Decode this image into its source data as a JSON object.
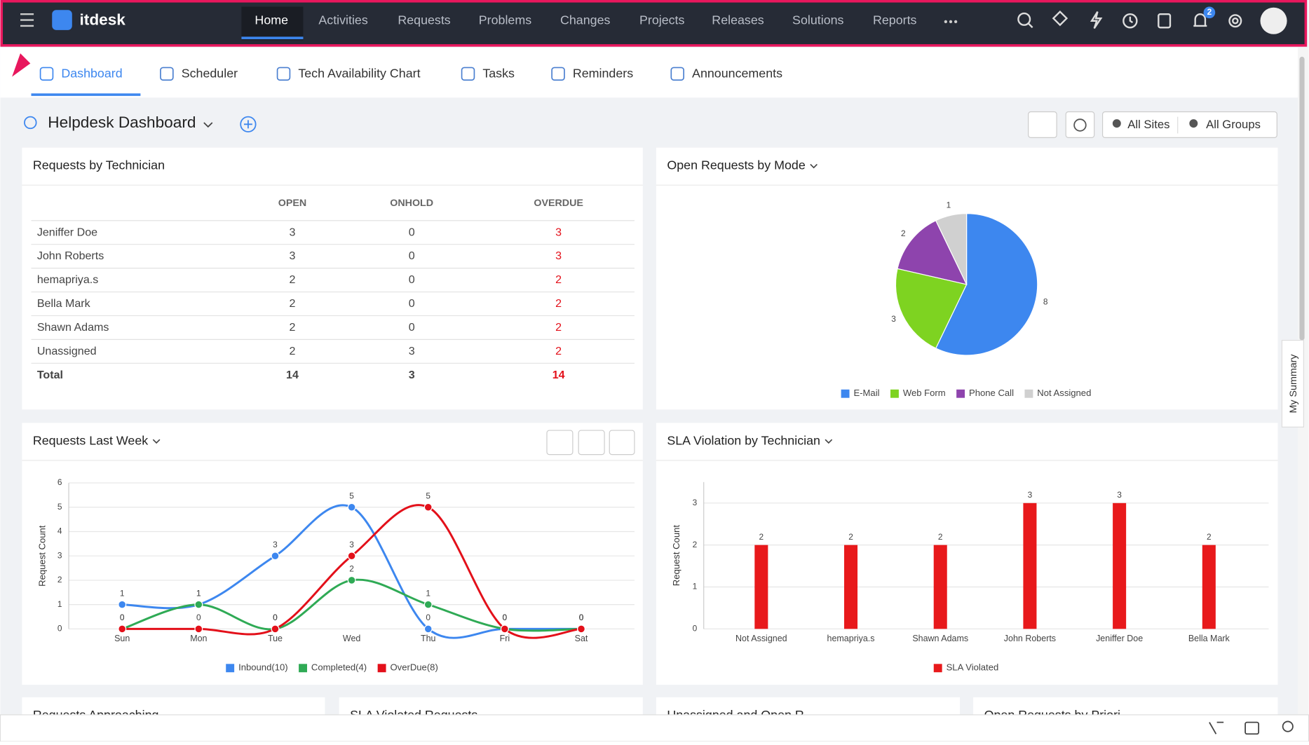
{
  "nav": {
    "logo": "itdesk",
    "items": [
      "Home",
      "Activities",
      "Requests",
      "Problems",
      "Changes",
      "Projects",
      "Releases",
      "Solutions",
      "Reports"
    ],
    "badge": 2
  },
  "tabs": [
    "Dashboard",
    "Scheduler",
    "Tech Availability Chart",
    "Tasks",
    "Reminders",
    "Announcements"
  ],
  "dashboard": {
    "title": "Helpdesk Dashboard",
    "sites": "All Sites",
    "groups": "All Groups"
  },
  "table_widget": {
    "title": "Requests by Technician",
    "columns": [
      "OPEN",
      "ONHOLD",
      "OVERDUE"
    ],
    "rows": [
      [
        "Jeniffer Doe",
        3,
        0,
        3
      ],
      [
        "John Roberts",
        3,
        0,
        3
      ],
      [
        "hemapriya.s",
        2,
        0,
        2
      ],
      [
        "Bella Mark",
        2,
        0,
        2
      ],
      [
        "Shawn Adams",
        2,
        0,
        2
      ],
      [
        "Unassigned",
        2,
        3,
        2
      ]
    ],
    "total": [
      "Total",
      14,
      3,
      14
    ]
  },
  "chart_data": [
    {
      "type": "pie",
      "title": "Open Requests by Mode",
      "categories": [
        "E-Mail",
        "Web Form",
        "Phone Call",
        "Not Assigned"
      ],
      "values": [
        8,
        3,
        2,
        1
      ],
      "colors": [
        "#3d87ef",
        "#7ed321",
        "#8e44ad",
        "#d0d0d0"
      ],
      "legend": "bottom"
    },
    {
      "type": "line",
      "title": "Requests Last Week",
      "y_label": "Request Count",
      "categories": [
        "Sun",
        "Mon",
        "Tue",
        "Wed",
        "Thu",
        "Fri",
        "Sat"
      ],
      "series": [
        {
          "name": "Inbound(10)",
          "color": "#3d87ef",
          "values": [
            1,
            1,
            3,
            5,
            0,
            0,
            0
          ]
        },
        {
          "name": "Completed(4)",
          "color": "#2faa55",
          "values": [
            0,
            1,
            0,
            2,
            1,
            0,
            0
          ]
        },
        {
          "name": "OverDue(8)",
          "color": "#e3101a",
          "values": [
            0,
            0,
            0,
            3,
            5,
            0,
            0
          ]
        }
      ],
      "ylim": [
        0,
        6
      ],
      "yticks": [
        0,
        1,
        2,
        3,
        4,
        5,
        6
      ],
      "grid": true,
      "legend": "bottom"
    },
    {
      "type": "bar",
      "title": "SLA Violation by Technician",
      "y_label": "Request Count",
      "categories": [
        "Not Assigned",
        "hemapriya.s",
        "Shawn Adams",
        "John Roberts",
        "Jeniffer Doe",
        "Bella Mark"
      ],
      "series": [
        {
          "name": "SLA Violated",
          "color": "#e8191b",
          "values": [
            2,
            2,
            2,
            3,
            3,
            2
          ]
        }
      ],
      "ylim": [
        0,
        3.5
      ],
      "yticks": [
        0,
        1,
        2,
        3
      ],
      "grid": true,
      "legend": "bottom"
    }
  ],
  "bottom_widgets": [
    "Requests Approaching",
    "SLA Violated Requests",
    "Unassigned and Open R",
    "Open Requests by Priori"
  ],
  "side_tab": "My Summary"
}
